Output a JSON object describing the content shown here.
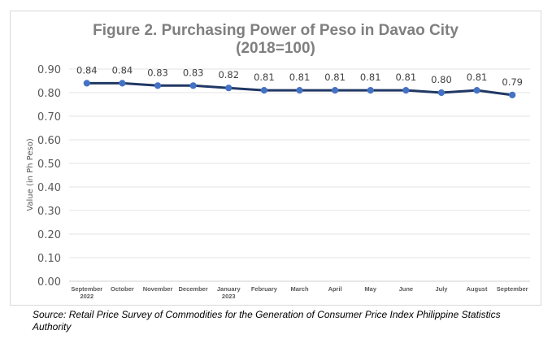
{
  "chart_data": {
    "type": "line",
    "title_line1": "Figure 2. Purchasing Power of Peso in Davao City",
    "title_line2": "(2018=100)",
    "ylabel": "Value (in Ph Peso)",
    "xlabel": "",
    "ylim": [
      0,
      0.9
    ],
    "yticks": [
      "0.00",
      "0.10",
      "0.20",
      "0.30",
      "0.40",
      "0.50",
      "0.60",
      "0.70",
      "0.80",
      "0.90"
    ],
    "grid": true,
    "legend": "none",
    "categories": [
      [
        "September",
        "2022"
      ],
      [
        "October"
      ],
      [
        "November"
      ],
      [
        "December"
      ],
      [
        "January",
        "2023"
      ],
      [
        "February"
      ],
      [
        "March"
      ],
      [
        "April"
      ],
      [
        "May"
      ],
      [
        "June"
      ],
      [
        "July"
      ],
      [
        "August"
      ],
      [
        "September"
      ]
    ],
    "series": [
      {
        "values": [
          0.84,
          0.84,
          0.83,
          0.83,
          0.82,
          0.81,
          0.81,
          0.81,
          0.81,
          0.81,
          0.8,
          0.81,
          0.79
        ],
        "labels": [
          "0.84",
          "0.84",
          "0.83",
          "0.83",
          "0.82",
          "0.81",
          "0.81",
          "0.81",
          "0.81",
          "0.81",
          "0.80",
          "0.81",
          "0.79"
        ],
        "line_color": "#203864",
        "marker_color": "#4472c4"
      }
    ]
  },
  "source": "Source: Retail Price Survey of Commodities for the Generation of Consumer Price Index Philippine Statistics Authority"
}
